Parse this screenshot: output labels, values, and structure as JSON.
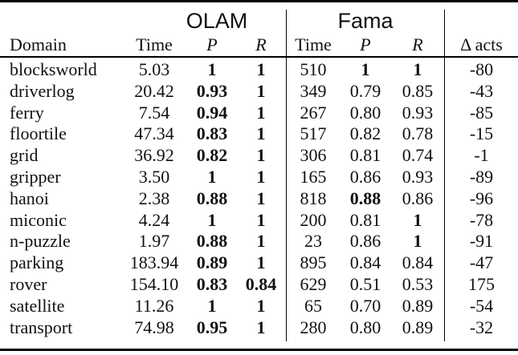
{
  "table": {
    "group_headers": {
      "olam": "OLAM",
      "fama": "Fama"
    },
    "column_headers": {
      "domain": "Domain",
      "olam_time": "Time",
      "olam_p": "P",
      "olam_r": "R",
      "fama_time": "Time",
      "fama_p": "P",
      "fama_r": "R",
      "delta_acts": "Δ acts"
    },
    "rows": [
      {
        "domain": "blocksworld",
        "olam_time": "5.03",
        "olam_p": "1",
        "olam_r": "1",
        "fama_time": "510",
        "fama_p": "1",
        "fama_r": "1",
        "delta_acts": "-80",
        "bold": [
          "olam_p",
          "olam_r",
          "fama_p",
          "fama_r"
        ]
      },
      {
        "domain": "driverlog",
        "olam_time": "20.42",
        "olam_p": "0.93",
        "olam_r": "1",
        "fama_time": "349",
        "fama_p": "0.79",
        "fama_r": "0.85",
        "delta_acts": "-43",
        "bold": [
          "olam_p",
          "olam_r"
        ]
      },
      {
        "domain": "ferry",
        "olam_time": "7.54",
        "olam_p": "0.94",
        "olam_r": "1",
        "fama_time": "267",
        "fama_p": "0.80",
        "fama_r": "0.93",
        "delta_acts": "-85",
        "bold": [
          "olam_p",
          "olam_r"
        ]
      },
      {
        "domain": "floortile",
        "olam_time": "47.34",
        "olam_p": "0.83",
        "olam_r": "1",
        "fama_time": "517",
        "fama_p": "0.82",
        "fama_r": "0.78",
        "delta_acts": "-15",
        "bold": [
          "olam_p",
          "olam_r"
        ]
      },
      {
        "domain": "grid",
        "olam_time": "36.92",
        "olam_p": "0.82",
        "olam_r": "1",
        "fama_time": "306",
        "fama_p": "0.81",
        "fama_r": "0.74",
        "delta_acts": "-1",
        "bold": [
          "olam_p",
          "olam_r"
        ]
      },
      {
        "domain": "gripper",
        "olam_time": "3.50",
        "olam_p": "1",
        "olam_r": "1",
        "fama_time": "165",
        "fama_p": "0.86",
        "fama_r": "0.93",
        "delta_acts": "-89",
        "bold": [
          "olam_p",
          "olam_r"
        ]
      },
      {
        "domain": "hanoi",
        "olam_time": "2.38",
        "olam_p": "0.88",
        "olam_r": "1",
        "fama_time": "818",
        "fama_p": "0.88",
        "fama_r": "0.86",
        "delta_acts": "-96",
        "bold": [
          "olam_p",
          "olam_r",
          "fama_p"
        ]
      },
      {
        "domain": "miconic",
        "olam_time": "4.24",
        "olam_p": "1",
        "olam_r": "1",
        "fama_time": "200",
        "fama_p": "0.81",
        "fama_r": "1",
        "delta_acts": "-78",
        "bold": [
          "olam_p",
          "olam_r",
          "fama_r"
        ]
      },
      {
        "domain": "n-puzzle",
        "olam_time": "1.97",
        "olam_p": "0.88",
        "olam_r": "1",
        "fama_time": "23",
        "fama_p": "0.86",
        "fama_r": "1",
        "delta_acts": "-91",
        "bold": [
          "olam_p",
          "olam_r",
          "fama_r"
        ]
      },
      {
        "domain": "parking",
        "olam_time": "183.94",
        "olam_p": "0.89",
        "olam_r": "1",
        "fama_time": "895",
        "fama_p": "0.84",
        "fama_r": "0.84",
        "delta_acts": "-47",
        "bold": [
          "olam_p",
          "olam_r"
        ]
      },
      {
        "domain": "rover",
        "olam_time": "154.10",
        "olam_p": "0.83",
        "olam_r": "0.84",
        "fama_time": "629",
        "fama_p": "0.51",
        "fama_r": "0.53",
        "delta_acts": "175",
        "bold": [
          "olam_p",
          "olam_r"
        ]
      },
      {
        "domain": "satellite",
        "olam_time": "11.26",
        "olam_p": "1",
        "olam_r": "1",
        "fama_time": "65",
        "fama_p": "0.70",
        "fama_r": "0.89",
        "delta_acts": "-54",
        "bold": [
          "olam_p",
          "olam_r"
        ]
      },
      {
        "domain": "transport",
        "olam_time": "74.98",
        "olam_p": "0.95",
        "olam_r": "1",
        "fama_time": "280",
        "fama_p": "0.80",
        "fama_r": "0.89",
        "delta_acts": "-32",
        "bold": [
          "olam_p",
          "olam_r"
        ]
      }
    ]
  }
}
